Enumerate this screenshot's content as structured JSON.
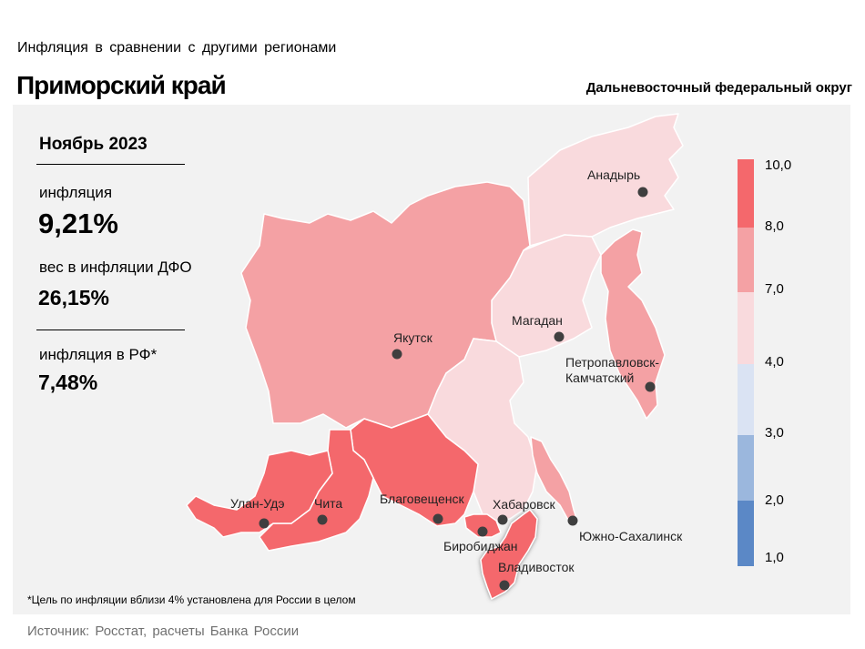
{
  "header": {
    "subtitle": "Инфляция в сравнении с другими регионами",
    "title": "Приморский край",
    "district": "Дальневосточный федеральный округ"
  },
  "stats": {
    "period": "Ноябрь 2023",
    "inflation_label": "инфляция",
    "inflation_value": "9,21%",
    "weight_label": "вес в инфляции ДФО",
    "weight_value": "26,15%",
    "rf_label": "инфляция в РФ*",
    "rf_value": "7,48%"
  },
  "legend": {
    "ticks": [
      "10,0",
      "8,0",
      "7,0",
      "4,0",
      "3,0",
      "2,0",
      "1,0"
    ],
    "colors": [
      "#f4686c",
      "#f4a1a4",
      "#f9dadd",
      "#dae3f3",
      "#9bb7dd",
      "#5b88c6"
    ]
  },
  "map": {
    "highlighted_region": "Приморский край",
    "cities": [
      "Анадырь",
      "Якутск",
      "Магадан",
      "Петропавловск-Камчатский",
      "Улан-Удэ",
      "Чита",
      "Благовещенск",
      "Хабаровск",
      "Биробиджан",
      "Южно-Сахалинск",
      "Владивосток"
    ],
    "kamchatka_label_lines": [
      "Петропавловск-",
      "Камчатский"
    ]
  },
  "footnote": "*Цель по инфляции вблизи 4% установлена для России в целом",
  "source": "Источник: Росстат, расчеты Банка России"
}
